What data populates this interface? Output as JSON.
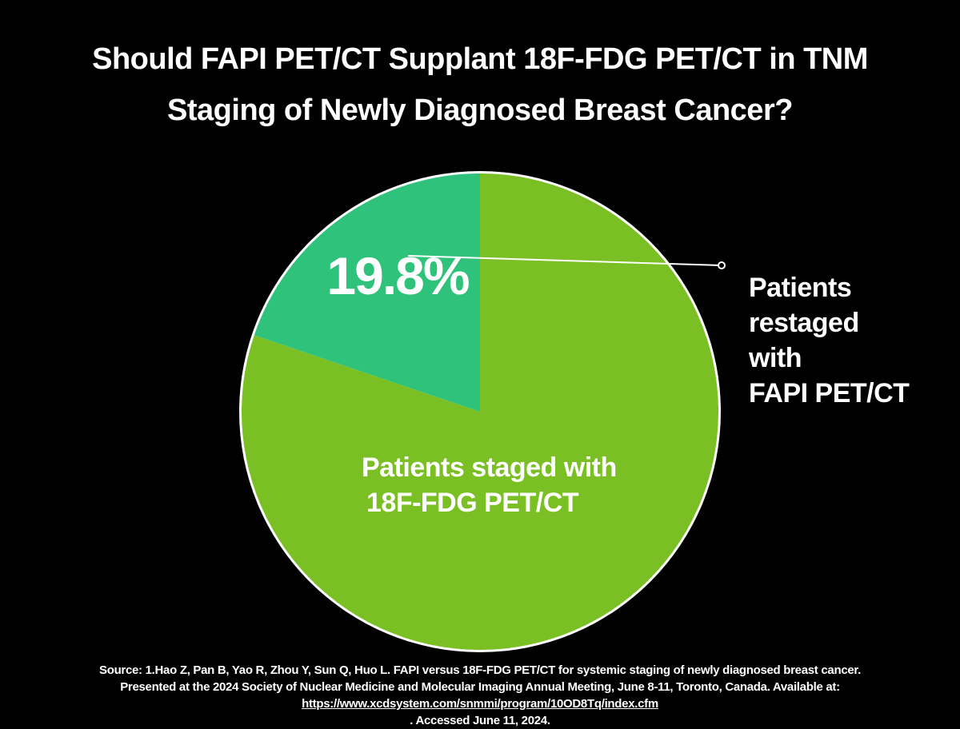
{
  "title": {
    "line1": "Should FAPI PET/CT Supplant 18F-FDG PET/CT in TNM",
    "line2": "Staging of Newly Diagnosed Breast Cancer?"
  },
  "chart_data": {
    "type": "pie",
    "title": "Should FAPI PET/CT Supplant 18F-FDG PET/CT in TNM Staging of Newly Diagnosed Breast Cancer?",
    "slices": [
      {
        "label_lines": [
          "Patients",
          "restaged",
          "with",
          "FAPI PET/CT"
        ],
        "value": 19.8,
        "value_label": "19.8%",
        "color": "#2ec27a"
      },
      {
        "label_lines": [
          "Patients staged with",
          "18F-FDG PET/CT"
        ],
        "value": 80.2,
        "color": "#7abf23"
      }
    ],
    "start": "12 o'clock",
    "direction": "counterclockwise for first slice",
    "border_color": "#ffffff"
  },
  "source": {
    "line1": "Source: 1.Hao Z, Pan B, Yao R, Zhou Y, Sun Q, Huo L. FAPI versus 18F-FDG PET/CT for systemic staging of newly diagnosed breast cancer.",
    "line2": "Presented at the 2024 Society of Nuclear Medicine and Molecular Imaging Annual Meeting, June 8-11, Toronto, Canada. Available at:",
    "url": "https://www.xcdsystem.com/snmmi/program/10OD8Tq/index.cfm",
    "line3_suffix": " . Accessed June 11, 2024."
  }
}
